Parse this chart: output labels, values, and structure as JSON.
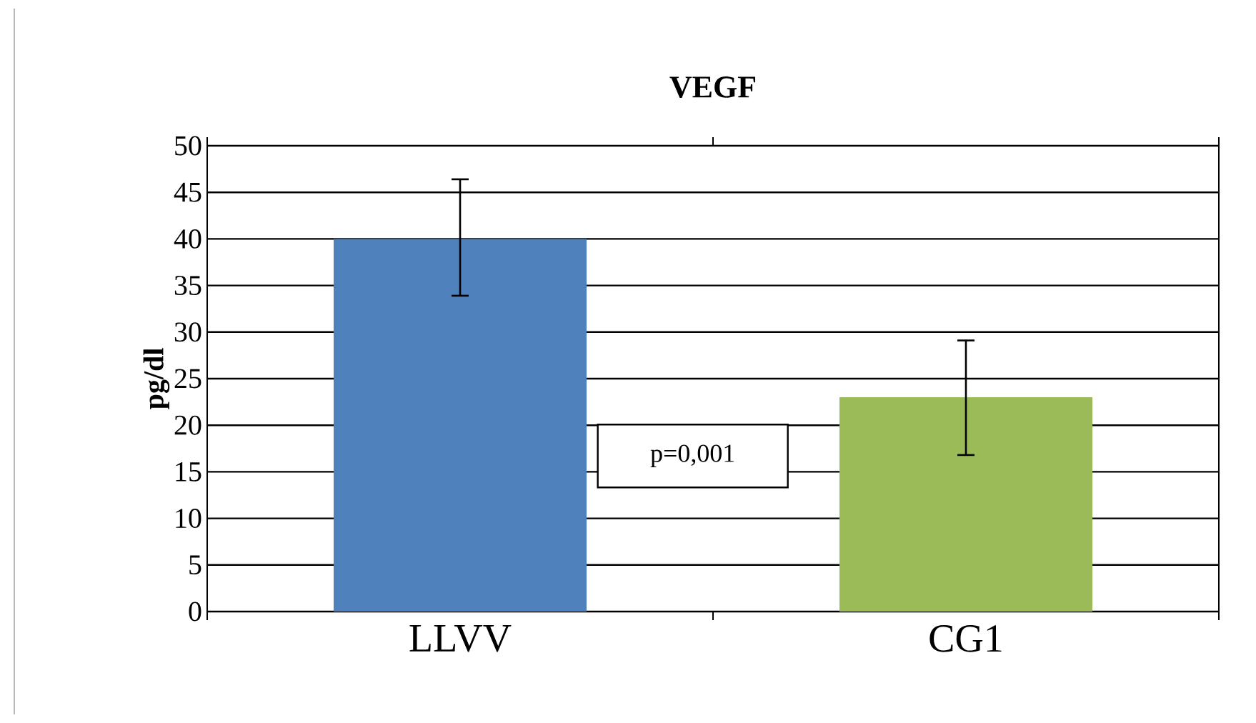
{
  "chart_data": {
    "type": "bar",
    "title": "VEGF",
    "ylabel": "pg/dl",
    "categories": [
      "LLVV",
      "CG1"
    ],
    "values": [
      40,
      23
    ],
    "colors": [
      "#4f81bd",
      "#9bbb59"
    ],
    "errors": [
      [
        33.9,
        46.4
      ],
      [
        16.8,
        29.1
      ]
    ],
    "ylim": [
      0,
      50
    ],
    "yticks": [
      0,
      5,
      10,
      15,
      20,
      25,
      30,
      35,
      40,
      45,
      50
    ],
    "grid": "y",
    "annotations": [
      "p=0,001"
    ]
  }
}
